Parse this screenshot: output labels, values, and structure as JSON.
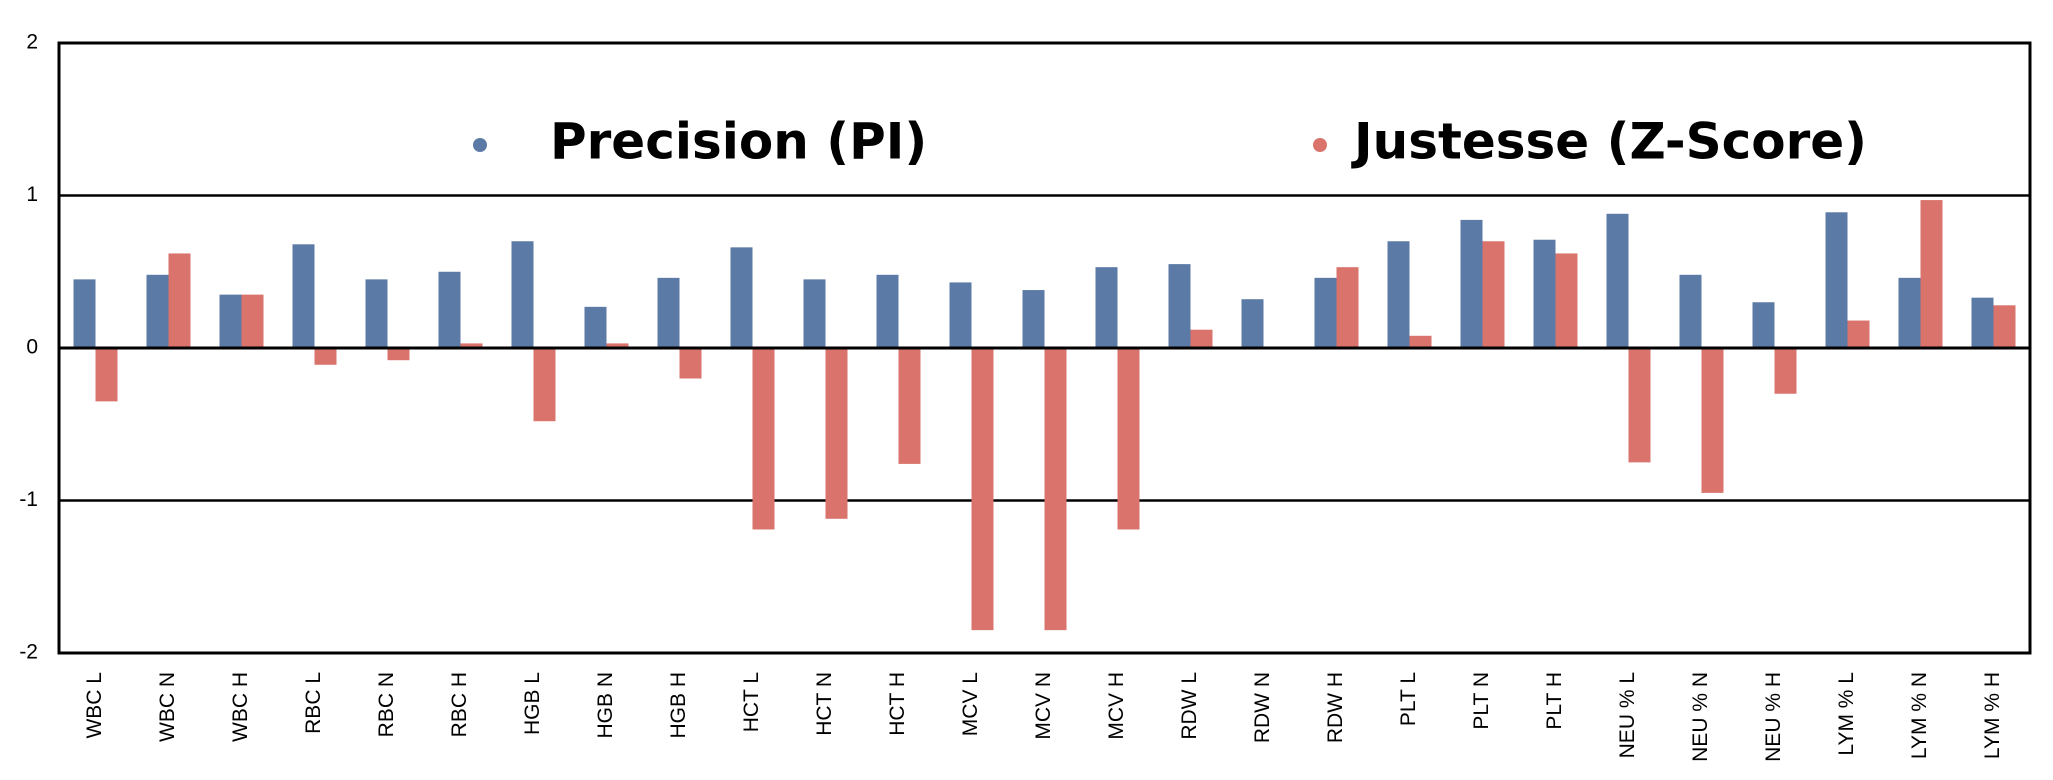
{
  "chart_data": {
    "type": "bar",
    "categories": [
      "WBC  L",
      "WBC  N",
      "WBC  H",
      "RBC  L",
      "RBC  N",
      "RBC  H",
      "HGB  L",
      "HGB  N",
      "HGB H",
      "HCT  L",
      "HCT  N",
      "HCT H",
      "MCV  L",
      "MCV  N",
      "MCV H",
      "RDW  L",
      "RDW  N",
      "RDW H",
      "PLT  L",
      "PLT  N",
      "PLT  H",
      "NEU %  L",
      "NEU %  N",
      "NEU % H",
      "LYM %  L",
      "LYM %  N",
      "LYM % H"
    ],
    "series": [
      {
        "name": "Precision (PI)",
        "color": "#5b7aa5",
        "values": [
          0.45,
          0.48,
          0.35,
          0.68,
          0.45,
          0.5,
          0.7,
          0.27,
          0.46,
          0.66,
          0.45,
          0.48,
          0.43,
          0.38,
          0.53,
          0.55,
          0.32,
          0.46,
          0.7,
          0.84,
          0.71,
          0.88,
          0.48,
          0.3,
          0.89,
          0.46,
          0.33
        ]
      },
      {
        "name": "Justesse (Z-Score)",
        "color": "#d9736c",
        "values": [
          -0.35,
          0.62,
          0.35,
          -0.11,
          -0.08,
          0.03,
          -0.48,
          0.03,
          -0.2,
          -1.19,
          -1.12,
          -0.76,
          -1.85,
          -1.85,
          -1.19,
          0.12,
          0,
          0.53,
          0.08,
          0.7,
          0.62,
          -0.75,
          -0.95,
          -0.3,
          0.18,
          0.97,
          0.28
        ]
      }
    ],
    "ylim": [
      -2,
      2
    ],
    "yticks": [
      -2,
      -1,
      0,
      1,
      2
    ],
    "grid": true
  }
}
